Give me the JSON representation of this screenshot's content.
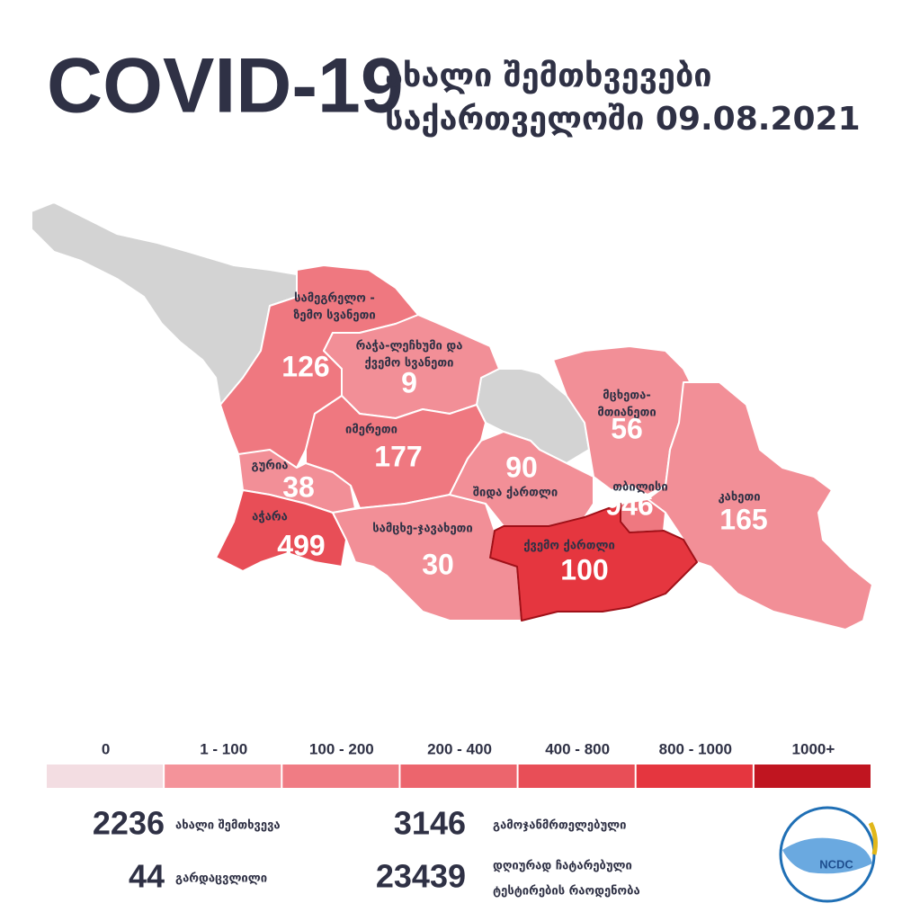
{
  "header": {
    "title": "COVID-19",
    "subtitle_line1": "ახალი შემთხვევები",
    "subtitle_line2": "საქართველოში 09.08.2021"
  },
  "regions": [
    {
      "name": [
        "სამეგრელო -",
        "ზემო სვანეთი"
      ],
      "value": 126,
      "color": "#ef7880"
    },
    {
      "name": [
        "რაჭა-ლეჩხუმი და",
        "ქვემო სვანეთი"
      ],
      "value": 9,
      "color": "#f28f97"
    },
    {
      "name": [
        "იმერეთი"
      ],
      "value": 177,
      "color": "#ef7880"
    },
    {
      "name": [
        "გურია"
      ],
      "value": 38,
      "color": "#f28f97"
    },
    {
      "name": [
        "აჭარა"
      ],
      "value": 499,
      "color": "#e84e57"
    },
    {
      "name": [
        "სამცხე-ჯავახეთი"
      ],
      "value": 30,
      "color": "#f28f97"
    },
    {
      "name": [
        "შიდა ქართლი"
      ],
      "value": 90,
      "color": "#f28f97"
    },
    {
      "name": [
        "მცხეთა-",
        "მთიანეთი"
      ],
      "value": 56,
      "color": "#f28f97"
    },
    {
      "name": [
        "თბილისი"
      ],
      "value": 946,
      "color": "#e5363f"
    },
    {
      "name": [
        "ქვემო ქართლი"
      ],
      "value": 100,
      "color": "#f28f97"
    },
    {
      "name": [
        "კახეთი"
      ],
      "value": 165,
      "color": "#ef7880"
    }
  ],
  "legend": [
    {
      "label": "0",
      "color": "#f3dde2"
    },
    {
      "label": "1 - 100",
      "color": "#f4939a"
    },
    {
      "label": "100 - 200",
      "color": "#f07c84"
    },
    {
      "label": "200 - 400",
      "color": "#ec656d"
    },
    {
      "label": "400 - 800",
      "color": "#e84e57"
    },
    {
      "label": "800 - 1000",
      "color": "#e5363f"
    },
    {
      "label": "1000+",
      "color": "#c01520"
    }
  ],
  "stats": [
    {
      "value": 2236,
      "label": [
        "ახალი შემთხვევა"
      ]
    },
    {
      "value": 44,
      "label": [
        "გარდაცვლილი"
      ]
    },
    {
      "value": 3146,
      "label": [
        "გამოჯანმრთელებული"
      ]
    },
    {
      "value": 23439,
      "label": [
        "დღიურად ჩატარებული",
        "ტესტირების რაოდენობა"
      ]
    }
  ],
  "logo": "NCDC"
}
